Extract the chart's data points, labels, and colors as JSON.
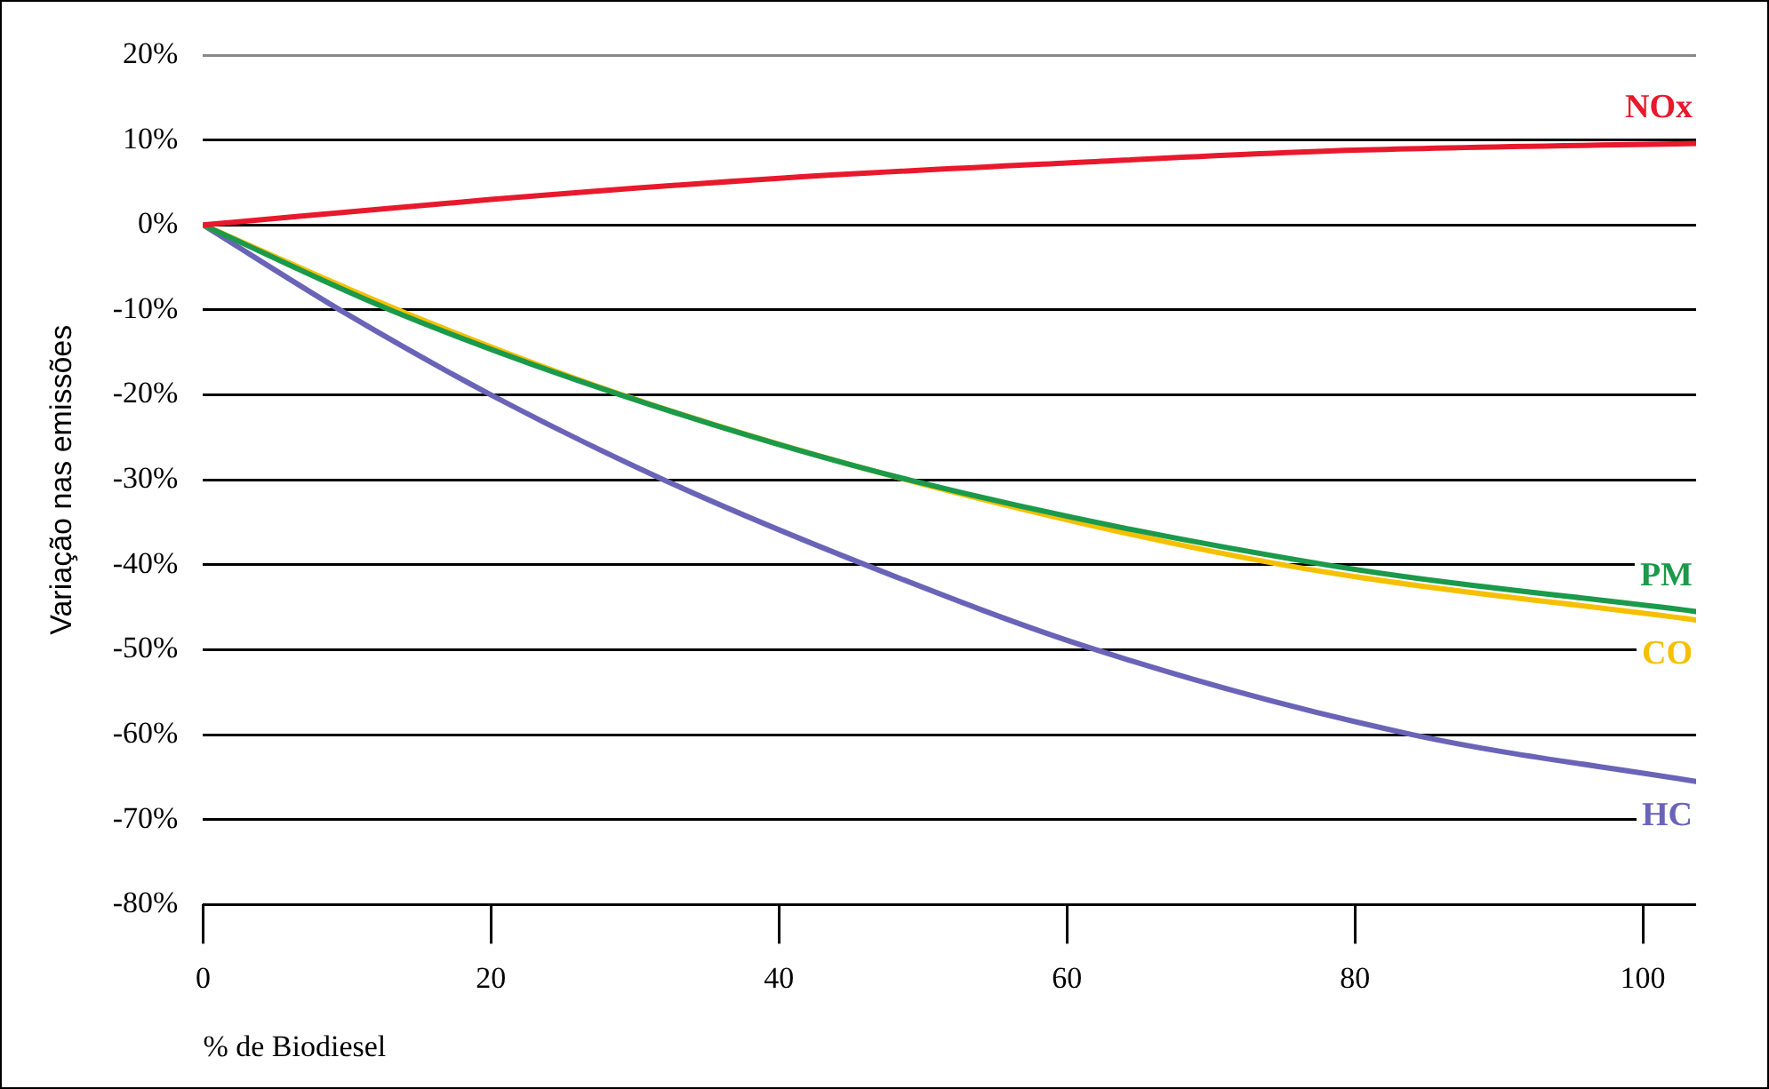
{
  "chart_data": {
    "type": "line",
    "xlabel": "% de Biodiesel",
    "ylabel": "Variação nas emissões",
    "xlim": [
      0,
      103.7
    ],
    "xticks": [
      0,
      20,
      40,
      60,
      80,
      100
    ],
    "ylim": [
      -80,
      20
    ],
    "yticks": [
      {
        "value": -80,
        "label": "-80%"
      },
      {
        "value": -70,
        "label": "-70%"
      },
      {
        "value": -60,
        "label": "-60%"
      },
      {
        "value": -50,
        "label": "-50%"
      },
      {
        "value": -40,
        "label": "-40%"
      },
      {
        "value": -30,
        "label": "-30%"
      },
      {
        "value": -20,
        "label": "-20%"
      },
      {
        "value": -10,
        "label": "-10%"
      },
      {
        "value": 0,
        "label": "0%"
      },
      {
        "value": 10,
        "label": "10%"
      },
      {
        "value": 20,
        "label": "20%"
      }
    ],
    "grid": "y",
    "legend": false,
    "marker": "none",
    "line_style": "solid",
    "series": [
      {
        "name": "NOx",
        "color": "#e8192c",
        "x": [
          0,
          20,
          40,
          60,
          80,
          103.7
        ],
        "values": [
          0,
          3,
          5.5,
          7.3,
          8.8,
          9.6
        ]
      },
      {
        "name": "PM",
        "color": "#1a9a4a",
        "x": [
          0,
          13,
          29,
          49,
          78,
          103.7
        ],
        "values": [
          0,
          -10,
          -20,
          -30,
          -40,
          -45.5
        ]
      },
      {
        "name": "CO",
        "color": "#f5c000",
        "x": [
          0,
          15,
          30,
          50,
          75,
          103.7
        ],
        "values": [
          0,
          -11,
          -20.5,
          -30.5,
          -40,
          -46.5
        ]
      },
      {
        "name": "HC",
        "color": "#6a64b8",
        "x": [
          0,
          10,
          20,
          32,
          46,
          62,
          84,
          103.7
        ],
        "values": [
          0,
          -10.5,
          -20,
          -30,
          -40,
          -50,
          -60,
          -65.5
        ]
      }
    ]
  }
}
